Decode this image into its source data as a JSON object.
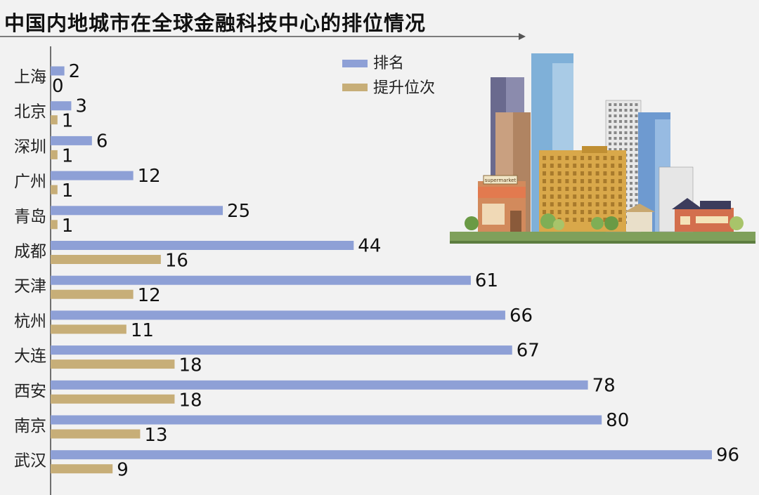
{
  "colors": {
    "rank": "#8ea0d6",
    "rise": "#c7ae78",
    "axis": "#444444"
  },
  "chart_data": {
    "type": "bar",
    "orientation": "horizontal",
    "title": "中国内地城市在全球金融科技中心的排位情况",
    "categories": [
      "上海",
      "北京",
      "深圳",
      "广州",
      "青岛",
      "成都",
      "天津",
      "杭州",
      "大连",
      "西安",
      "南京",
      "武汉"
    ],
    "series": [
      {
        "name": "排名",
        "values": [
          2,
          3,
          6,
          12,
          25,
          44,
          61,
          66,
          67,
          78,
          80,
          96
        ]
      },
      {
        "name": "提升位次",
        "values": [
          0,
          1,
          1,
          1,
          1,
          16,
          12,
          11,
          18,
          18,
          13,
          9
        ]
      }
    ],
    "xlim": [
      0,
      100
    ],
    "legend_position": "top-center",
    "grid": false
  },
  "illustration": {
    "sign_text": "supermarket"
  }
}
